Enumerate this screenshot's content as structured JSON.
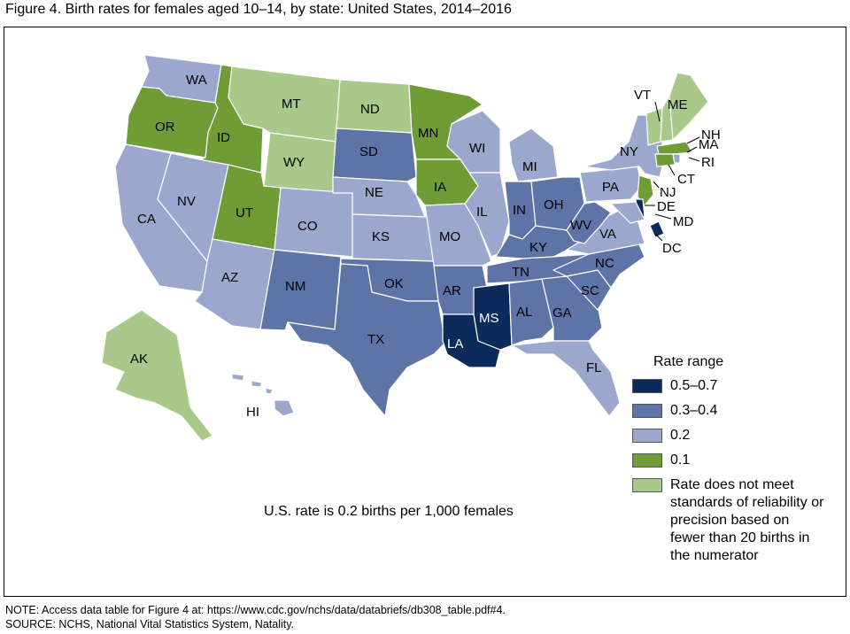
{
  "title": "Figure 4. Birth rates for females aged 10–14, by state: United States, 2014–2016",
  "us_rate_text": "U.S. rate is 0.2 births per 1,000 females",
  "legend": {
    "title": "Rate range",
    "items": [
      {
        "label": "0.5–0.7",
        "color": "#0b2c5a"
      },
      {
        "label": "0.3–0.4",
        "color": "#5e73a6"
      },
      {
        "label": "0.2",
        "color": "#9ba7cd"
      },
      {
        "label": "0.1",
        "color": "#6f9c35"
      },
      {
        "label": "Rate does not meet standards of reliability or precision based on fewer than 20 births in the numerator",
        "color": "#a8c98a"
      }
    ]
  },
  "states": [
    {
      "abbr": "WA",
      "cls": "0.2"
    },
    {
      "abbr": "OR",
      "cls": "0.1"
    },
    {
      "abbr": "CA",
      "cls": "0.2"
    },
    {
      "abbr": "ID",
      "cls": "0.1"
    },
    {
      "abbr": "NV",
      "cls": "0.2"
    },
    {
      "abbr": "MT",
      "cls": "nm"
    },
    {
      "abbr": "WY",
      "cls": "nm"
    },
    {
      "abbr": "UT",
      "cls": "0.1"
    },
    {
      "abbr": "AZ",
      "cls": "0.2"
    },
    {
      "abbr": "CO",
      "cls": "0.2"
    },
    {
      "abbr": "NM",
      "cls": "0.3–0.4"
    },
    {
      "abbr": "ND",
      "cls": "nm"
    },
    {
      "abbr": "SD",
      "cls": "0.3–0.4"
    },
    {
      "abbr": "NE",
      "cls": "0.2"
    },
    {
      "abbr": "KS",
      "cls": "0.2"
    },
    {
      "abbr": "OK",
      "cls": "0.3–0.4"
    },
    {
      "abbr": "TX",
      "cls": "0.3–0.4"
    },
    {
      "abbr": "MN",
      "cls": "0.1"
    },
    {
      "abbr": "IA",
      "cls": "0.1"
    },
    {
      "abbr": "MO",
      "cls": "0.2"
    },
    {
      "abbr": "AR",
      "cls": "0.3–0.4"
    },
    {
      "abbr": "LA",
      "cls": "0.5–0.7"
    },
    {
      "abbr": "WI",
      "cls": "0.2"
    },
    {
      "abbr": "IL",
      "cls": "0.2"
    },
    {
      "abbr": "MI",
      "cls": "0.2"
    },
    {
      "abbr": "IN",
      "cls": "0.3–0.4"
    },
    {
      "abbr": "OH",
      "cls": "0.3–0.4"
    },
    {
      "abbr": "KY",
      "cls": "0.3–0.4"
    },
    {
      "abbr": "TN",
      "cls": "0.3–0.4"
    },
    {
      "abbr": "MS",
      "cls": "0.5–0.7"
    },
    {
      "abbr": "AL",
      "cls": "0.3–0.4"
    },
    {
      "abbr": "GA",
      "cls": "0.3–0.4"
    },
    {
      "abbr": "FL",
      "cls": "0.2"
    },
    {
      "abbr": "SC",
      "cls": "0.3–0.4"
    },
    {
      "abbr": "NC",
      "cls": "0.3–0.4"
    },
    {
      "abbr": "VA",
      "cls": "0.2"
    },
    {
      "abbr": "WV",
      "cls": "0.3–0.4"
    },
    {
      "abbr": "PA",
      "cls": "0.2"
    },
    {
      "abbr": "NY",
      "cls": "0.2"
    },
    {
      "abbr": "VT",
      "cls": "nm"
    },
    {
      "abbr": "NH",
      "cls": "nm"
    },
    {
      "abbr": "ME",
      "cls": "nm"
    },
    {
      "abbr": "MA",
      "cls": "0.1"
    },
    {
      "abbr": "RI",
      "cls": "0.2"
    },
    {
      "abbr": "CT",
      "cls": "0.1"
    },
    {
      "abbr": "NJ",
      "cls": "0.1"
    },
    {
      "abbr": "DE",
      "cls": "0.5–0.7"
    },
    {
      "abbr": "MD",
      "cls": "0.2"
    },
    {
      "abbr": "DC",
      "cls": "0.5–0.7"
    },
    {
      "abbr": "AK",
      "cls": "nm"
    },
    {
      "abbr": "HI",
      "cls": "0.2"
    }
  ],
  "notes": [
    "NOTE: Access data table for Figure 4 at: https://www.cdc.gov/nchs/data/databriefs/db308_table.pdf#4.",
    "SOURCE: NCHS, National Vital Statistics System, Natality."
  ]
}
